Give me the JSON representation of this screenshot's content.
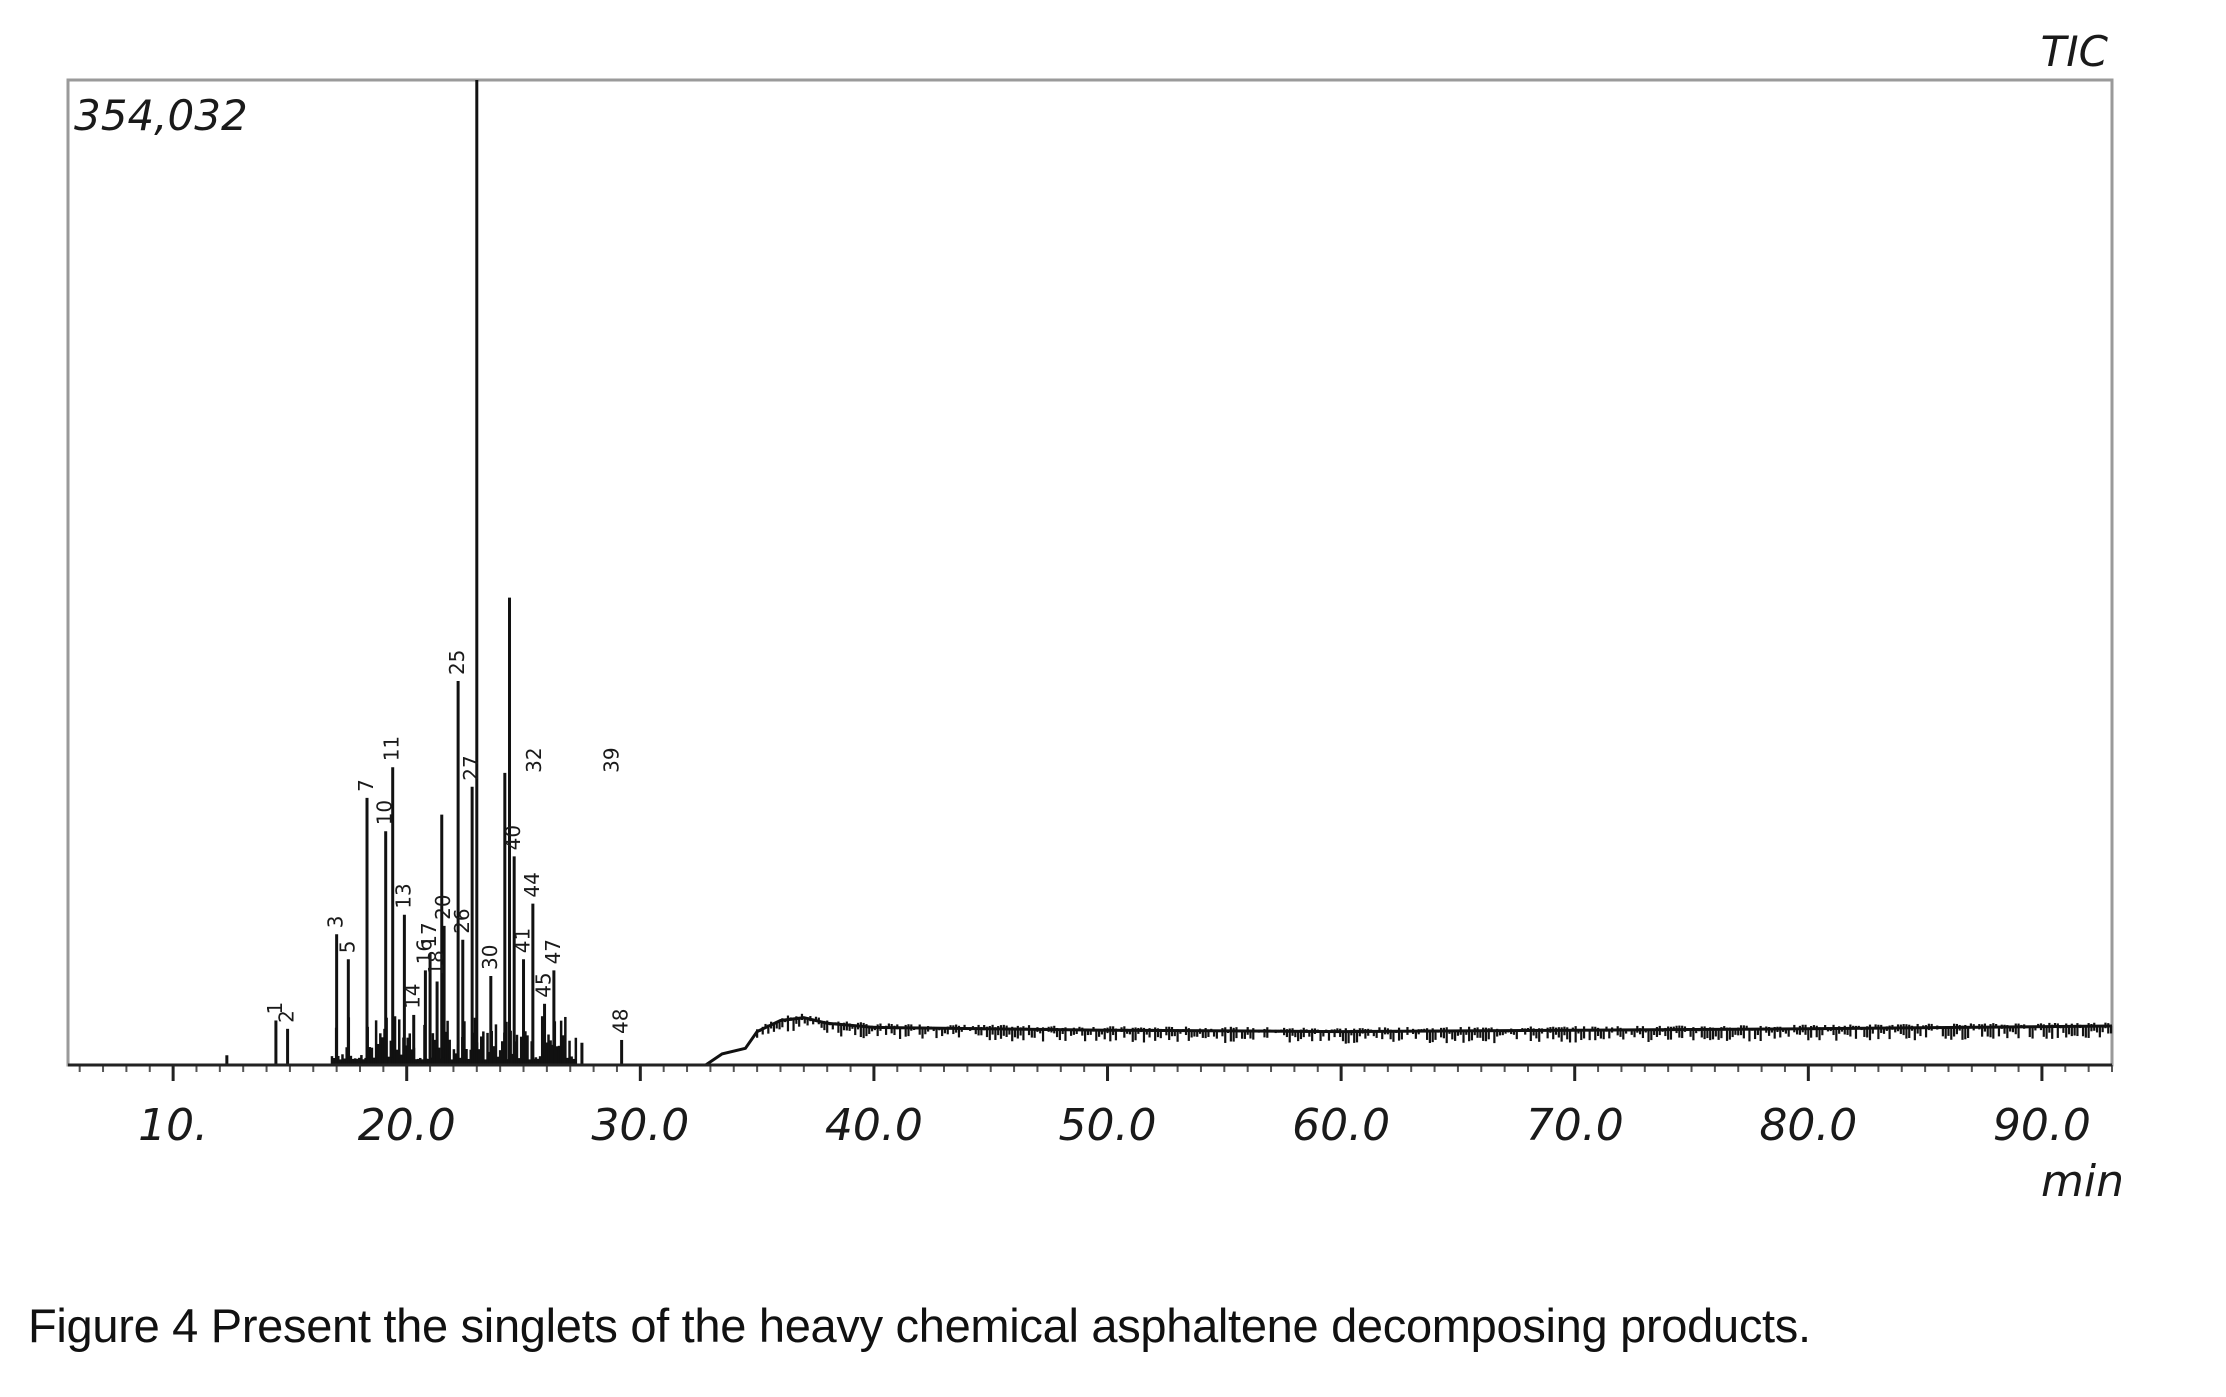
{
  "chart_data": {
    "type": "line",
    "trace_label": "TIC",
    "intensity_max_label": "354,032",
    "x_unit": "min",
    "xlim": [
      5.5,
      93.0
    ],
    "ylim": [
      0,
      354032
    ],
    "x_ticks": [
      {
        "value": 10,
        "label": "10."
      },
      {
        "value": 20,
        "label": "20.0"
      },
      {
        "value": 30,
        "label": "30.0"
      },
      {
        "value": 40,
        "label": "40.0"
      },
      {
        "value": 50,
        "label": "50.0"
      },
      {
        "value": 60,
        "label": "60.0"
      },
      {
        "value": 70,
        "label": "70.0"
      },
      {
        "value": 80,
        "label": "80.0"
      },
      {
        "value": 90,
        "label": "90.0"
      }
    ],
    "peaks": [
      {
        "rt": 12.3,
        "intensity": 3500,
        "label": ""
      },
      {
        "rt": 14.4,
        "intensity": 16000,
        "label": "1"
      },
      {
        "rt": 14.9,
        "intensity": 13000,
        "label": "2"
      },
      {
        "rt": 17.0,
        "intensity": 47000,
        "label": "3"
      },
      {
        "rt": 17.5,
        "intensity": 38000,
        "label": "5"
      },
      {
        "rt": 18.3,
        "intensity": 96000,
        "label": "7"
      },
      {
        "rt": 19.1,
        "intensity": 84000,
        "label": "10"
      },
      {
        "rt": 19.4,
        "intensity": 107000,
        "label": "11"
      },
      {
        "rt": 19.9,
        "intensity": 54000,
        "label": "13"
      },
      {
        "rt": 20.3,
        "intensity": 18000,
        "label": "14"
      },
      {
        "rt": 20.8,
        "intensity": 34000,
        "label": "16"
      },
      {
        "rt": 21.0,
        "intensity": 40000,
        "label": "17"
      },
      {
        "rt": 21.3,
        "intensity": 30000,
        "label": "18"
      },
      {
        "rt": 21.5,
        "intensity": 90000,
        "label": ""
      },
      {
        "rt": 21.6,
        "intensity": 50000,
        "label": "20"
      },
      {
        "rt": 22.2,
        "intensity": 138000,
        "label": "25"
      },
      {
        "rt": 22.4,
        "intensity": 45000,
        "label": "26"
      },
      {
        "rt": 22.8,
        "intensity": 100000,
        "label": "27"
      },
      {
        "rt": 23.0,
        "intensity": 354032,
        "label": ""
      },
      {
        "rt": 23.6,
        "intensity": 32000,
        "label": "30"
      },
      {
        "rt": 24.2,
        "intensity": 105000,
        "label": ""
      },
      {
        "rt": 24.4,
        "intensity": 168000,
        "label": ""
      },
      {
        "rt": 24.6,
        "intensity": 75000,
        "label": "40"
      },
      {
        "rt": 25.0,
        "intensity": 38000,
        "label": "41"
      },
      {
        "rt": 25.4,
        "intensity": 58000,
        "label": "44"
      },
      {
        "rt": 25.9,
        "intensity": 22000,
        "label": "45"
      },
      {
        "rt": 26.3,
        "intensity": 34000,
        "label": "47"
      },
      {
        "rt": 25.5,
        "intensity": 0,
        "label": "32"
      },
      {
        "rt": 27.5,
        "intensity": 8000,
        "label": ""
      },
      {
        "rt": 28.8,
        "intensity": 0,
        "label": "39"
      },
      {
        "rt": 29.2,
        "intensity": 9000,
        "label": "48"
      }
    ],
    "baseline": [
      {
        "rt": 5.5,
        "intensity": 0
      },
      {
        "rt": 32.8,
        "intensity": 0
      },
      {
        "rt": 33.5,
        "intensity": 4000
      },
      {
        "rt": 34.5,
        "intensity": 6000
      },
      {
        "rt": 35.0,
        "intensity": 12000
      },
      {
        "rt": 36.0,
        "intensity": 16000
      },
      {
        "rt": 37.0,
        "intensity": 17000
      },
      {
        "rt": 38.0,
        "intensity": 15000
      },
      {
        "rt": 40.0,
        "intensity": 13500
      },
      {
        "rt": 50.0,
        "intensity": 12500
      },
      {
        "rt": 60.0,
        "intensity": 12000
      },
      {
        "rt": 70.0,
        "intensity": 12500
      },
      {
        "rt": 80.0,
        "intensity": 13000
      },
      {
        "rt": 93.0,
        "intensity": 14000
      }
    ]
  },
  "caption": "Figure 4 Present the singlets of the heavy chemical asphaltene decomposing products."
}
